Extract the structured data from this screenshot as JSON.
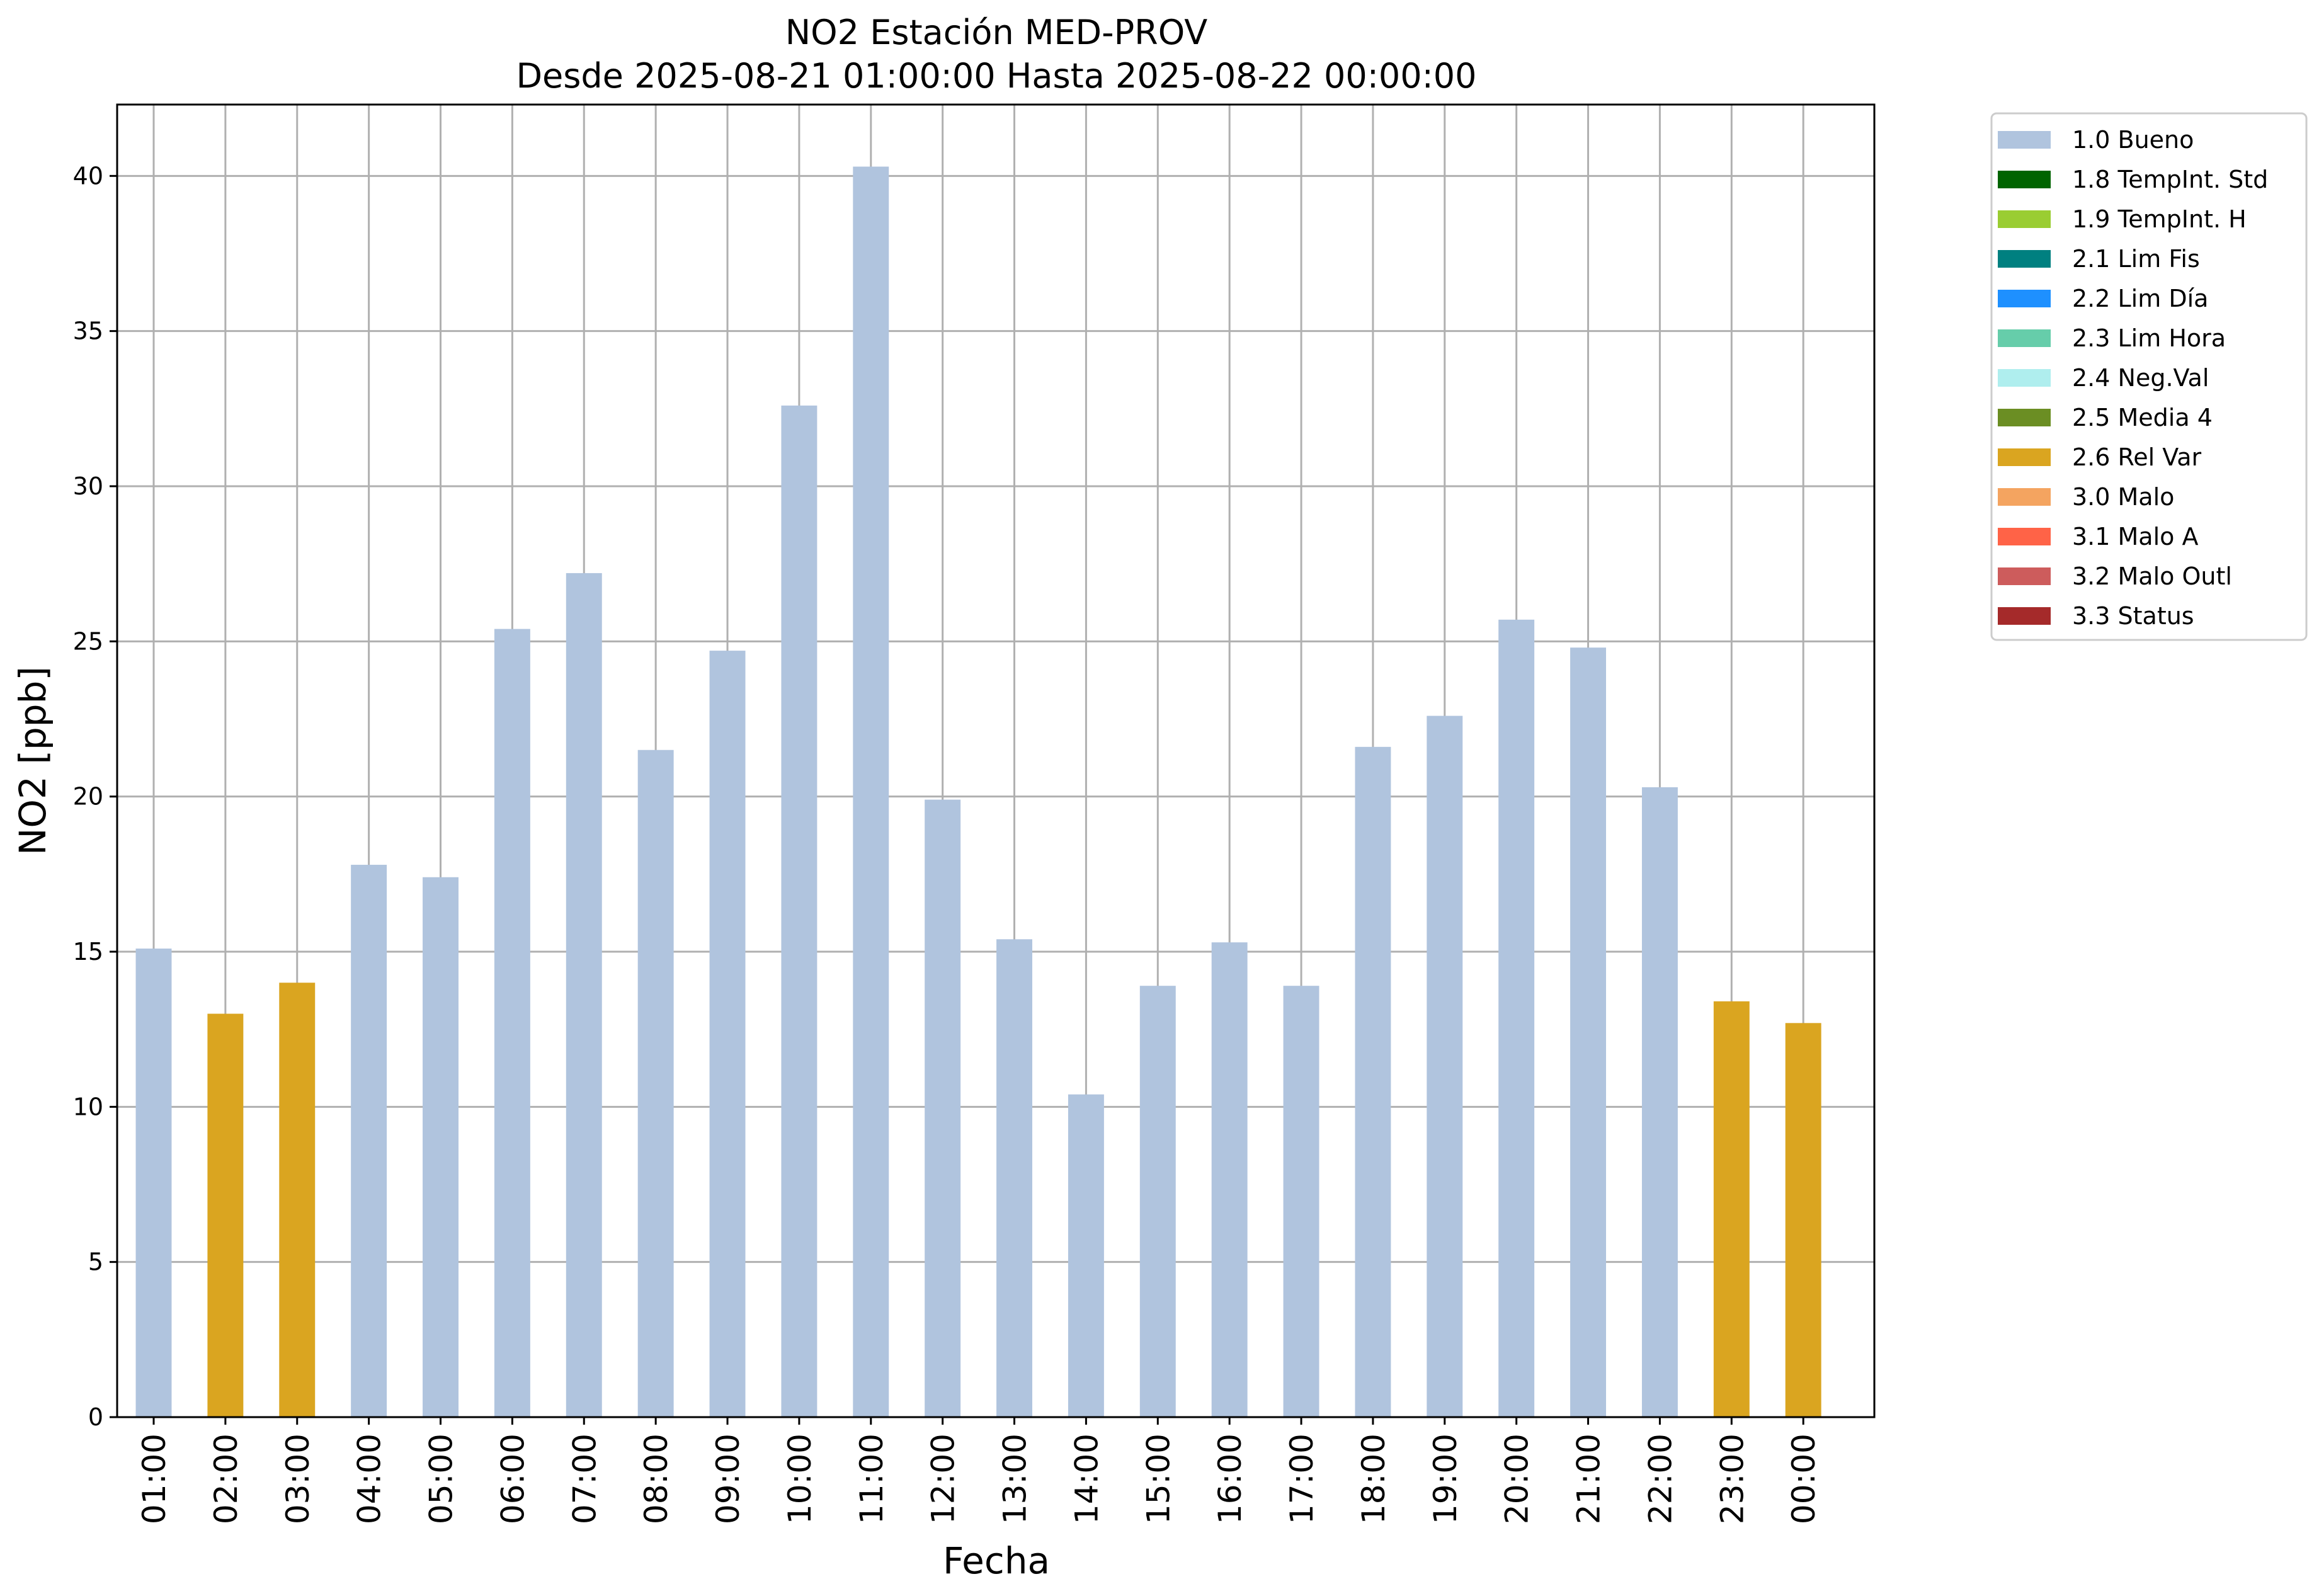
{
  "chart_data": {
    "type": "bar",
    "title": "NO2 Estación MED-PROV",
    "subtitle": "Desde 2025-08-21 01:00:00 Hasta 2025-08-22 00:00:00",
    "xlabel": "Fecha",
    "ylabel": "NO2 [ppb]",
    "ylim": [
      0,
      42.3
    ],
    "yticks": [
      0,
      5,
      10,
      15,
      20,
      25,
      30,
      35,
      40
    ],
    "grid": true,
    "legend_position": "outside-top-right",
    "categories": [
      "01:00",
      "02:00",
      "03:00",
      "04:00",
      "05:00",
      "06:00",
      "07:00",
      "08:00",
      "09:00",
      "10:00",
      "11:00",
      "12:00",
      "13:00",
      "14:00",
      "15:00",
      "16:00",
      "17:00",
      "18:00",
      "19:00",
      "20:00",
      "21:00",
      "22:00",
      "23:00",
      "00:00"
    ],
    "values": [
      15.1,
      13.0,
      14.0,
      17.8,
      17.4,
      25.4,
      27.2,
      21.5,
      24.7,
      32.6,
      40.3,
      19.9,
      15.4,
      10.4,
      13.9,
      15.3,
      13.9,
      21.6,
      22.6,
      25.7,
      24.8,
      20.3,
      13.4,
      12.7
    ],
    "flags": [
      "1.0 Bueno",
      "2.6 Rel Var",
      "2.6 Rel Var",
      "1.0 Bueno",
      "1.0 Bueno",
      "1.0 Bueno",
      "1.0 Bueno",
      "1.0 Bueno",
      "1.0 Bueno",
      "1.0 Bueno",
      "1.0 Bueno",
      "1.0 Bueno",
      "1.0 Bueno",
      "1.0 Bueno",
      "1.0 Bueno",
      "1.0 Bueno",
      "1.0 Bueno",
      "1.0 Bueno",
      "1.0 Bueno",
      "1.0 Bueno",
      "1.0 Bueno",
      "1.0 Bueno",
      "2.6 Rel Var",
      "2.6 Rel Var"
    ],
    "legend": [
      {
        "label": "1.0 Bueno",
        "color": "#b0c4de"
      },
      {
        "label": "1.8 TempInt. Std",
        "color": "#006400"
      },
      {
        "label": "1.9 TempInt. H",
        "color": "#9acd32"
      },
      {
        "label": "2.1 Lim Fis",
        "color": "#008080"
      },
      {
        "label": "2.2 Lim Día",
        "color": "#1e90ff"
      },
      {
        "label": "2.3 Lim Hora",
        "color": "#66cdaa"
      },
      {
        "label": "2.4 Neg.Val",
        "color": "#afeeee"
      },
      {
        "label": "2.5 Media 4",
        "color": "#6b8e23"
      },
      {
        "label": "2.6 Rel Var",
        "color": "#daa520"
      },
      {
        "label": "3.0 Malo",
        "color": "#f4a460"
      },
      {
        "label": "3.1 Malo A",
        "color": "#ff6347"
      },
      {
        "label": "3.2 Malo Outl",
        "color": "#cd5c5c"
      },
      {
        "label": "3.3 Status",
        "color": "#a52a2a"
      }
    ],
    "colors": {
      "grid": "#b0b0b0",
      "axis": "#000000",
      "legend_border": "#cccccc"
    }
  }
}
